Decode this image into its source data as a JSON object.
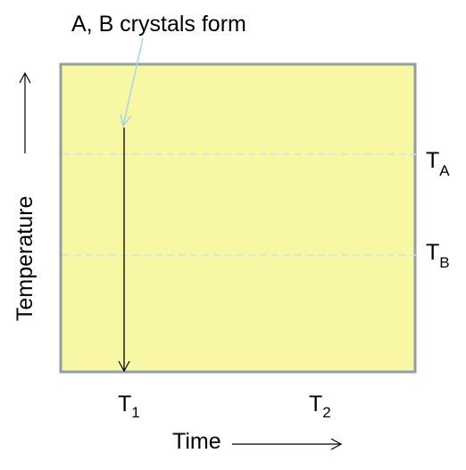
{
  "diagram": {
    "annotation": "A, B crystals form",
    "y_axis_label": "Temperature",
    "x_axis_label": "Time",
    "levels": [
      {
        "base": "T",
        "sub": "A"
      },
      {
        "base": "T",
        "sub": "B"
      }
    ],
    "times": [
      {
        "base": "T",
        "sub": "1"
      },
      {
        "base": "T",
        "sub": "2"
      }
    ]
  },
  "colors": {
    "region_fill": "#f7f7a4",
    "region_border": "#8ea0a0",
    "dashed_line": "#c8e8e8",
    "callout_arrow": "#a8d8e8",
    "cooling_arrow": "#000000"
  }
}
